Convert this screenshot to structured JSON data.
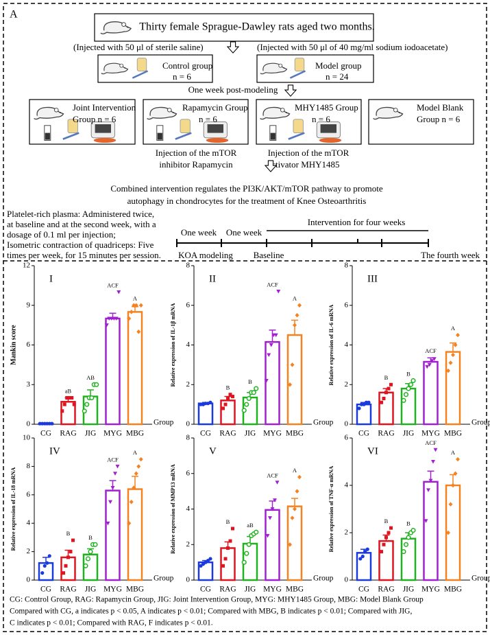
{
  "diagram": {
    "panel_label": "A",
    "source": "Thirty female Sprague-Dawley rats aged two months.",
    "injection_left": "(Injected with 50 μl of sterile saline)",
    "injection_right": "(Injected with 50 μl of 40 mg/ml sodium iodoacetate)",
    "first_groups": [
      {
        "label": "Control group",
        "n": "n = 6"
      },
      {
        "label": "Model group",
        "n": "n = 24"
      }
    ],
    "post_modeling": "One week post-modeling",
    "groups": [
      [
        "Joint Intervention",
        "Group n = 6"
      ],
      [
        "Rapamycin Group",
        "n = 6"
      ],
      [
        "MHY1485 Group",
        "n = 6"
      ],
      [
        "Model Blank",
        "Group n = 6"
      ]
    ],
    "notes": [
      [
        "Injection of the mTOR",
        "inhibitor Rapamycin"
      ],
      [
        "Injection of the mTOR",
        "activator MHY1485"
      ]
    ],
    "conclusion": [
      "Combined intervention regulates the PI3K/AKT/mTOR pathway to promote",
      "autophagy in chondrocytes for the treatment of Knee Osteoarthritis"
    ],
    "protocol": [
      "Platelet-rich plasma: Administered twice,",
      "at baseline and at the second week, with a",
      "dosage of 0.1 ml per injection;",
      "Isometric contraction of quadriceps: Five",
      "times per week, for 15 minutes per session."
    ],
    "timeline": {
      "segments": [
        "One week",
        "One week"
      ],
      "intervention": "Intervention for four weeks",
      "milestones": [
        "KOA modeling",
        "Baseline",
        "The fourth week"
      ]
    }
  },
  "chart_data": [
    {
      "type": "bar",
      "title": "I",
      "ylabel": "Mankin score",
      "xlabel": "Group",
      "categories": [
        "CG",
        "RAG",
        "JIG",
        "MYG",
        "MBG"
      ],
      "colors": [
        "#1a3adb",
        "#e0141e",
        "#1eb31e",
        "#a020d0",
        "#f58220"
      ],
      "values": [
        0.05,
        1.7,
        2.1,
        8.0,
        8.5
      ],
      "errors": [
        0.02,
        0.3,
        0.5,
        0.4,
        0.4
      ],
      "points": [
        [
          0.05,
          0.05,
          0.05,
          0.05,
          0.05,
          0.05
        ],
        [
          1.0,
          1.5,
          2.0,
          2.0,
          2.0,
          1.5
        ],
        [
          1.0,
          1.5,
          2.0,
          2.0,
          3.0,
          3.0
        ],
        [
          7.5,
          8.0,
          8.0,
          8.0,
          8.0,
          10.0
        ],
        [
          8.0,
          8.5,
          9.0,
          9.0,
          7.0,
          9.0
        ]
      ],
      "annotations": [
        null,
        "aB",
        "AB",
        "ACF",
        "A"
      ],
      "ylim": [
        0,
        12
      ],
      "yticks": [
        0,
        3,
        6,
        9,
        12
      ]
    },
    {
      "type": "bar",
      "title": "II",
      "ylabel": "Relative expression of IL-1β mRNA",
      "xlabel": "Group",
      "categories": [
        "CG",
        "RAG",
        "JIG",
        "MYG",
        "MBG"
      ],
      "colors": [
        "#1a3adb",
        "#e0141e",
        "#1eb31e",
        "#a020d0",
        "#f58220"
      ],
      "values": [
        1.05,
        1.2,
        1.35,
        4.15,
        4.5
      ],
      "errors": [
        0.05,
        0.2,
        0.25,
        0.6,
        0.75
      ],
      "points": [
        [
          1.0,
          1.0,
          1.05,
          1.05,
          1.1
        ],
        [
          0.8,
          1.0,
          1.3,
          1.5,
          1.4
        ],
        [
          0.7,
          1.0,
          1.3,
          1.6,
          1.6,
          1.8
        ],
        [
          2.2,
          3.5,
          4.0,
          4.5,
          4.5,
          6.7
        ],
        [
          2.0,
          3.0,
          5.0,
          5.5,
          6.0
        ]
      ],
      "annotations": [
        null,
        "B",
        "B",
        "ACF",
        "A"
      ],
      "ylim": [
        0,
        8
      ],
      "yticks": [
        0,
        2,
        4,
        6,
        8
      ]
    },
    {
      "type": "bar",
      "title": "III",
      "ylabel": "Relative expression of IL-6 mRNA",
      "xlabel": "Group",
      "categories": [
        "CG",
        "RAG",
        "JIG",
        "MYG",
        "MBG"
      ],
      "colors": [
        "#1a3adb",
        "#e0141e",
        "#1eb31e",
        "#a020d0",
        "#f58220"
      ],
      "values": [
        1.0,
        1.6,
        1.8,
        3.15,
        3.65
      ],
      "errors": [
        0.1,
        0.2,
        0.25,
        0.2,
        0.45
      ],
      "points": [
        [
          0.8,
          1.0,
          1.0,
          1.1,
          1.1
        ],
        [
          1.1,
          1.3,
          1.6,
          1.8,
          2.0
        ],
        [
          1.2,
          1.5,
          1.8,
          2.0,
          2.2
        ],
        [
          2.9,
          3.0,
          3.2,
          3.3
        ],
        [
          2.7,
          3.1,
          3.5,
          4.0,
          4.5
        ]
      ],
      "annotations": [
        null,
        "B",
        "B",
        "ACF",
        "A"
      ],
      "ylim": [
        0,
        8
      ],
      "yticks": [
        0,
        2,
        4,
        6,
        8
      ]
    },
    {
      "type": "bar",
      "title": "IV",
      "ylabel": "Relative expression of IL-18 mRNA",
      "xlabel": "Group",
      "categories": [
        "CG",
        "RAG",
        "JIG",
        "MYG",
        "MBG"
      ],
      "colors": [
        "#1a3adb",
        "#e0141e",
        "#1eb31e",
        "#a020d0",
        "#f58220"
      ],
      "values": [
        1.2,
        1.6,
        1.8,
        6.3,
        6.4
      ],
      "errors": [
        0.4,
        0.5,
        0.4,
        0.7,
        0.9
      ],
      "points": [
        [
          0.5,
          1.0,
          1.2,
          1.7
        ],
        [
          0.5,
          1.0,
          1.6,
          2.0,
          2.8
        ],
        [
          1.0,
          1.5,
          2.0,
          2.5,
          2.5
        ],
        [
          4.0,
          5.5,
          6.5,
          7.5,
          8.0
        ],
        [
          4.0,
          5.5,
          6.5,
          7.5,
          8.0,
          8.5
        ]
      ],
      "annotations": [
        null,
        "B",
        "B",
        "ACF",
        "A"
      ],
      "ylim": [
        0,
        10
      ],
      "yticks": [
        0,
        2,
        4,
        6,
        8,
        10
      ]
    },
    {
      "type": "bar",
      "title": "V",
      "ylabel": "Relative expression of MMP13 mRNA",
      "xlabel": "Group",
      "categories": [
        "CG",
        "RAG",
        "JIG",
        "MYG",
        "MBG"
      ],
      "colors": [
        "#1a3adb",
        "#e0141e",
        "#1eb31e",
        "#a020d0",
        "#f58220"
      ],
      "values": [
        1.0,
        1.8,
        2.05,
        3.95,
        4.15
      ],
      "errors": [
        0.1,
        0.35,
        0.4,
        0.5,
        0.45
      ],
      "points": [
        [
          0.8,
          0.9,
          1.0,
          1.1,
          1.2
        ],
        [
          0.8,
          1.2,
          1.8,
          2.2,
          2.9
        ],
        [
          1.0,
          1.5,
          2.0,
          2.5,
          2.6,
          2.7
        ],
        [
          2.5,
          3.5,
          4.0,
          4.5,
          5.5
        ],
        [
          2.0,
          3.5,
          4.0,
          5.0,
          5.8
        ]
      ],
      "annotations": [
        null,
        "B",
        "aB",
        "ACF",
        "A"
      ],
      "ylim": [
        0,
        8
      ],
      "yticks": [
        0,
        2,
        4,
        6,
        8
      ]
    },
    {
      "type": "bar",
      "title": "VI",
      "ylabel": "Relative expression of TNF-α mRNA",
      "xlabel": "Group",
      "categories": [
        "CG",
        "RAG",
        "JIG",
        "MYG",
        "MBG"
      ],
      "colors": [
        "#1a3adb",
        "#e0141e",
        "#1eb31e",
        "#a020d0",
        "#f58220"
      ],
      "values": [
        1.15,
        1.65,
        1.75,
        4.15,
        4.0
      ],
      "errors": [
        0.15,
        0.25,
        0.25,
        0.45,
        0.45
      ],
      "points": [
        [
          0.9,
          1.0,
          1.2,
          1.3
        ],
        [
          1.2,
          1.5,
          1.8,
          2.0,
          2.2
        ],
        [
          1.2,
          1.5,
          1.8,
          2.0,
          2.1
        ],
        [
          2.5,
          3.8,
          4.2,
          5.0,
          5.5
        ],
        [
          2.0,
          3.2,
          4.0,
          4.5,
          5.1
        ]
      ],
      "annotations": [
        null,
        "B",
        "B",
        "ACF",
        "A"
      ],
      "ylim": [
        0,
        6
      ],
      "yticks": [
        0,
        2,
        4,
        6
      ]
    }
  ],
  "caption": [
    "CG: Control Group, RAG: Rapamycin Group, JIG: Joint Intervention Group, MYG: MHY1485 Group, MBG: Model Blank Group",
    "Compared with CG, a indicates p < 0.05, A indicates p < 0.01; Compared with MBG, B indicates p < 0.01; Compared with JIG,",
    "C indicates p < 0.01; Compared with RAG, F indicates p < 0.01."
  ]
}
